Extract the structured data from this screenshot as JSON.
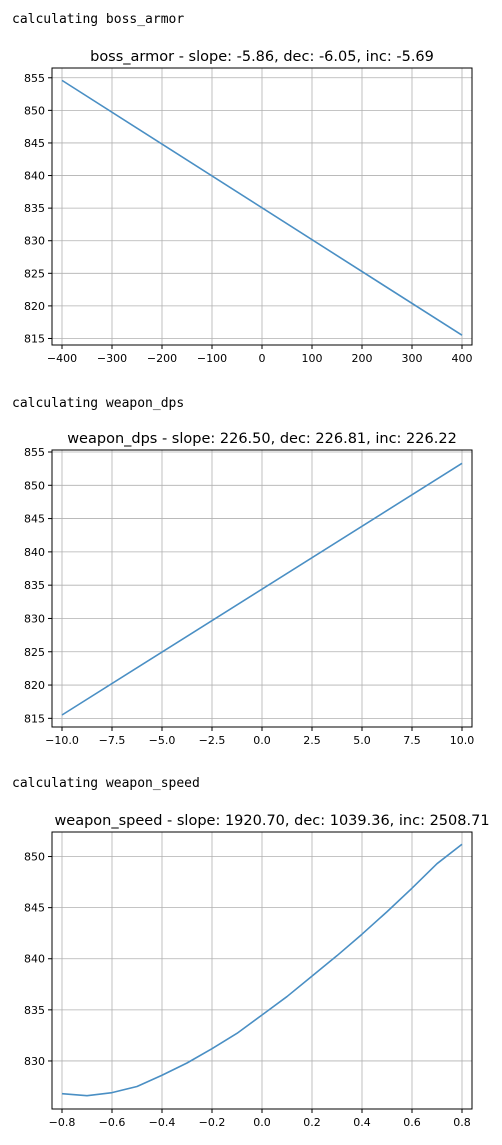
{
  "outputs": [
    {
      "label": "calculating boss_armor"
    },
    {
      "label": "calculating weapon_dps"
    },
    {
      "label": "calculating weapon_speed"
    }
  ],
  "colors": {
    "series": "#4a8fc4",
    "grid": "#b0b0b0"
  },
  "chart_data": [
    {
      "type": "line",
      "title": "boss_armor - slope: -5.86, dec: -6.05, inc: -5.69",
      "xlabel": "",
      "ylabel": "",
      "xlim": [
        -420,
        420
      ],
      "ylim": [
        814,
        856.5
      ],
      "xticks": [
        -400,
        -300,
        -200,
        -100,
        0,
        100,
        200,
        300,
        400
      ],
      "xtick_labels": [
        "−400",
        "−300",
        "−200",
        "−100",
        "0",
        "100",
        "200",
        "300",
        "400"
      ],
      "yticks": [
        815,
        820,
        825,
        830,
        835,
        840,
        845,
        850,
        855
      ],
      "ytick_labels": [
        "815",
        "820",
        "825",
        "830",
        "835",
        "840",
        "845",
        "850",
        "855"
      ],
      "grid": true,
      "series": [
        {
          "x": [
            -400,
            400
          ],
          "y": [
            854.6,
            815.5
          ]
        }
      ]
    },
    {
      "type": "line",
      "title": "weapon_dps - slope: 226.50, dec: 226.81, inc: 226.22",
      "xlabel": "",
      "ylabel": "",
      "xlim": [
        -10.5,
        10.5
      ],
      "ylim": [
        813.7,
        855.3
      ],
      "xticks": [
        -10,
        -7.5,
        -5,
        -2.5,
        0,
        2.5,
        5,
        7.5,
        10
      ],
      "xtick_labels": [
        "−10.0",
        "−7.5",
        "−5.0",
        "−2.5",
        "0.0",
        "2.5",
        "5.0",
        "7.5",
        "10.0"
      ],
      "yticks": [
        815,
        820,
        825,
        830,
        835,
        840,
        845,
        850,
        855
      ],
      "ytick_labels": [
        "815",
        "820",
        "825",
        "830",
        "835",
        "840",
        "845",
        "850",
        "855"
      ],
      "grid": true,
      "series": [
        {
          "x": [
            -10,
            10
          ],
          "y": [
            815.5,
            853.3
          ]
        }
      ]
    },
    {
      "type": "line",
      "title": "weapon_speed - slope: 1920.70, dec: 1039.36, inc: 2508.71",
      "xlabel": "",
      "ylabel": "",
      "xlim": [
        -0.84,
        0.84
      ],
      "ylim": [
        825.3,
        852.4
      ],
      "xticks": [
        -0.8,
        -0.6,
        -0.4,
        -0.2,
        0,
        0.2,
        0.4,
        0.6,
        0.8
      ],
      "xtick_labels": [
        "−0.8",
        "−0.6",
        "−0.4",
        "−0.2",
        "0.0",
        "0.2",
        "0.4",
        "0.6",
        "0.8"
      ],
      "yticks": [
        830,
        835,
        840,
        845,
        850
      ],
      "ytick_labels": [
        "830",
        "835",
        "840",
        "845",
        "850"
      ],
      "grid": true,
      "series": [
        {
          "x": [
            -0.8,
            -0.7,
            -0.6,
            -0.5,
            -0.4,
            -0.3,
            -0.2,
            -0.1,
            0,
            0.1,
            0.2,
            0.3,
            0.4,
            0.5,
            0.6,
            0.7,
            0.8
          ],
          "y": [
            826.8,
            826.6,
            826.9,
            827.5,
            828.6,
            829.8,
            831.2,
            832.7,
            834.5,
            836.3,
            838.3,
            840.3,
            842.4,
            844.6,
            846.9,
            849.3,
            851.2
          ]
        }
      ]
    }
  ]
}
